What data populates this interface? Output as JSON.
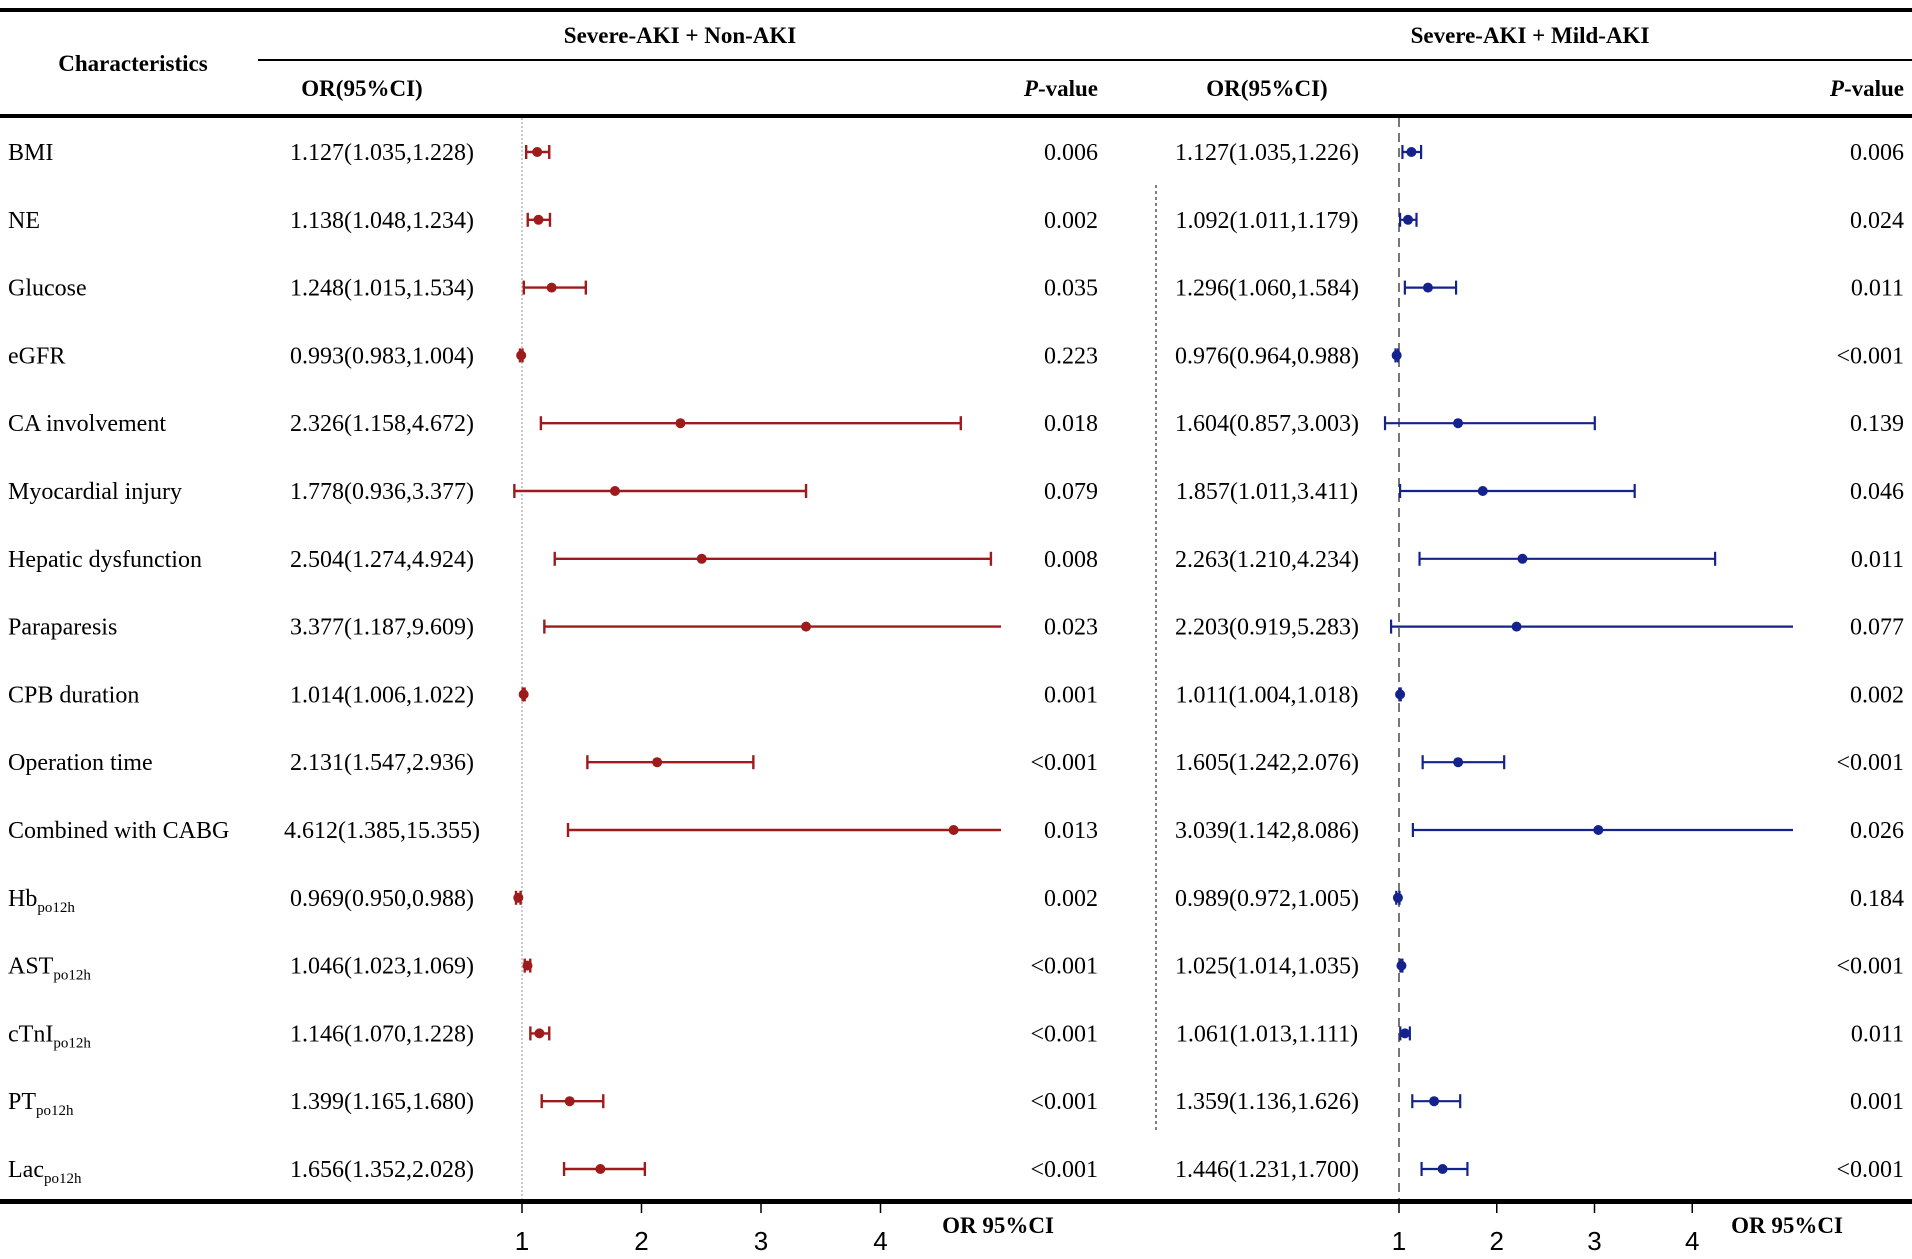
{
  "chart_data": {
    "type": "forest",
    "header": {
      "characteristics": "Characteristics",
      "group_left": "Severe-AKI + Non-AKI",
      "group_right": "Severe-AKI + Mild-AKI",
      "or_label": "OR(95%CI)",
      "p_label_italic": "P",
      "p_label_rest": "-value"
    },
    "axis_left": {
      "ticks": [
        "1",
        "2",
        "3",
        "4"
      ],
      "xlim": [
        0.9,
        5.0
      ],
      "reference": 1,
      "label": "OR 95%CI"
    },
    "axis_right": {
      "ticks": [
        "1",
        "2",
        "3",
        "4"
      ],
      "xlim": [
        0.95,
        5.0
      ],
      "reference": 1,
      "label": "OR 95%CI"
    },
    "colors": {
      "left": "#9e1b1b",
      "right": "#14238c"
    },
    "rows": [
      {
        "name": "BMI",
        "sub": "",
        "left": {
          "text": "1.127(1.035,1.228)",
          "or": 1.127,
          "lo": 1.035,
          "hi": 1.228,
          "p": "0.006"
        },
        "right": {
          "text": "1.127(1.035,1.226)",
          "or": 1.127,
          "lo": 1.035,
          "hi": 1.226,
          "p": "0.006"
        }
      },
      {
        "name": "NE",
        "sub": "",
        "left": {
          "text": "1.138(1.048,1.234)",
          "or": 1.138,
          "lo": 1.048,
          "hi": 1.234,
          "p": "0.002"
        },
        "right": {
          "text": "1.092(1.011,1.179)",
          "or": 1.092,
          "lo": 1.011,
          "hi": 1.179,
          "p": "0.024"
        }
      },
      {
        "name": "Glucose",
        "sub": "",
        "left": {
          "text": "1.248(1.015,1.534)",
          "or": 1.248,
          "lo": 1.015,
          "hi": 1.534,
          "p": "0.035"
        },
        "right": {
          "text": "1.296(1.060,1.584)",
          "or": 1.296,
          "lo": 1.06,
          "hi": 1.584,
          "p": "0.011"
        }
      },
      {
        "name": "eGFR",
        "sub": "",
        "left": {
          "text": "0.993(0.983,1.004)",
          "or": 0.993,
          "lo": 0.983,
          "hi": 1.004,
          "p": "0.223"
        },
        "right": {
          "text": "0.976(0.964,0.988)",
          "or": 0.976,
          "lo": 0.964,
          "hi": 0.988,
          "p": "<0.001"
        }
      },
      {
        "name": "CA involvement",
        "sub": "",
        "left": {
          "text": "2.326(1.158,4.672)",
          "or": 2.326,
          "lo": 1.158,
          "hi": 4.672,
          "p": "0.018"
        },
        "right": {
          "text": "1.604(0.857,3.003)",
          "or": 1.604,
          "lo": 0.857,
          "hi": 3.003,
          "p": "0.139"
        }
      },
      {
        "name": "Myocardial injury",
        "sub": "",
        "left": {
          "text": "1.778(0.936,3.377)",
          "or": 1.778,
          "lo": 0.936,
          "hi": 3.377,
          "p": "0.079"
        },
        "right": {
          "text": "1.857(1.011,3.411)",
          "or": 1.857,
          "lo": 1.011,
          "hi": 3.411,
          "p": "0.046"
        }
      },
      {
        "name": "Hepatic dysfunction",
        "sub": "",
        "left": {
          "text": "2.504(1.274,4.924)",
          "or": 2.504,
          "lo": 1.274,
          "hi": 4.924,
          "p": "0.008"
        },
        "right": {
          "text": "2.263(1.210,4.234)",
          "or": 2.263,
          "lo": 1.21,
          "hi": 4.234,
          "p": "0.011"
        }
      },
      {
        "name": "Paraparesis",
        "sub": "",
        "left": {
          "text": "3.377(1.187,9.609)",
          "or": 3.377,
          "lo": 1.187,
          "hi": 9.609,
          "p": "0.023"
        },
        "right": {
          "text": "2.203(0.919,5.283)",
          "or": 2.203,
          "lo": 0.919,
          "hi": 5.283,
          "p": "0.077"
        }
      },
      {
        "name": "CPB duration",
        "sub": "",
        "left": {
          "text": "1.014(1.006,1.022)",
          "or": 1.014,
          "lo": 1.006,
          "hi": 1.022,
          "p": "0.001"
        },
        "right": {
          "text": "1.011(1.004,1.018)",
          "or": 1.011,
          "lo": 1.004,
          "hi": 1.018,
          "p": "0.002"
        }
      },
      {
        "name": "Operation time",
        "sub": "",
        "left": {
          "text": "2.131(1.547,2.936)",
          "or": 2.131,
          "lo": 1.547,
          "hi": 2.936,
          "p": "<0.001"
        },
        "right": {
          "text": "1.605(1.242,2.076)",
          "or": 1.605,
          "lo": 1.242,
          "hi": 2.076,
          "p": "<0.001"
        }
      },
      {
        "name": "Combined with CABG",
        "sub": "",
        "left": {
          "text": "4.612(1.385,15.355)",
          "or": 4.612,
          "lo": 1.385,
          "hi": 15.355,
          "p": "0.013"
        },
        "right": {
          "text": "3.039(1.142,8.086)",
          "or": 3.039,
          "lo": 1.142,
          "hi": 8.086,
          "p": "0.026"
        }
      },
      {
        "name": "Hb",
        "sub": "po12h",
        "left": {
          "text": "0.969(0.950,0.988)",
          "or": 0.969,
          "lo": 0.95,
          "hi": 0.988,
          "p": "0.002"
        },
        "right": {
          "text": "0.989(0.972,1.005)",
          "or": 0.989,
          "lo": 0.972,
          "hi": 1.005,
          "p": "0.184"
        }
      },
      {
        "name": "AST",
        "sub": "po12h",
        "left": {
          "text": "1.046(1.023,1.069)",
          "or": 1.046,
          "lo": 1.023,
          "hi": 1.069,
          "p": "<0.001"
        },
        "right": {
          "text": "1.025(1.014,1.035)",
          "or": 1.025,
          "lo": 1.014,
          "hi": 1.035,
          "p": "<0.001"
        }
      },
      {
        "name": "cTnI",
        "sub": "po12h",
        "left": {
          "text": "1.146(1.070,1.228)",
          "or": 1.146,
          "lo": 1.07,
          "hi": 1.228,
          "p": "<0.001"
        },
        "right": {
          "text": "1.061(1.013,1.111)",
          "or": 1.061,
          "lo": 1.013,
          "hi": 1.111,
          "p": "0.011"
        }
      },
      {
        "name": "PT",
        "sub": "po12h",
        "left": {
          "text": "1.399(1.165,1.680)",
          "or": 1.399,
          "lo": 1.165,
          "hi": 1.68,
          "p": "<0.001"
        },
        "right": {
          "text": "1.359(1.136,1.626)",
          "or": 1.359,
          "lo": 1.136,
          "hi": 1.626,
          "p": "0.001"
        }
      },
      {
        "name": "Lac",
        "sub": "po12h",
        "left": {
          "text": "1.656(1.352,2.028)",
          "or": 1.656,
          "lo": 1.352,
          "hi": 2.028,
          "p": "<0.001"
        },
        "right": {
          "text": "1.446(1.231,1.700)",
          "or": 1.446,
          "lo": 1.231,
          "hi": 1.7,
          "p": "<0.001"
        }
      }
    ]
  }
}
